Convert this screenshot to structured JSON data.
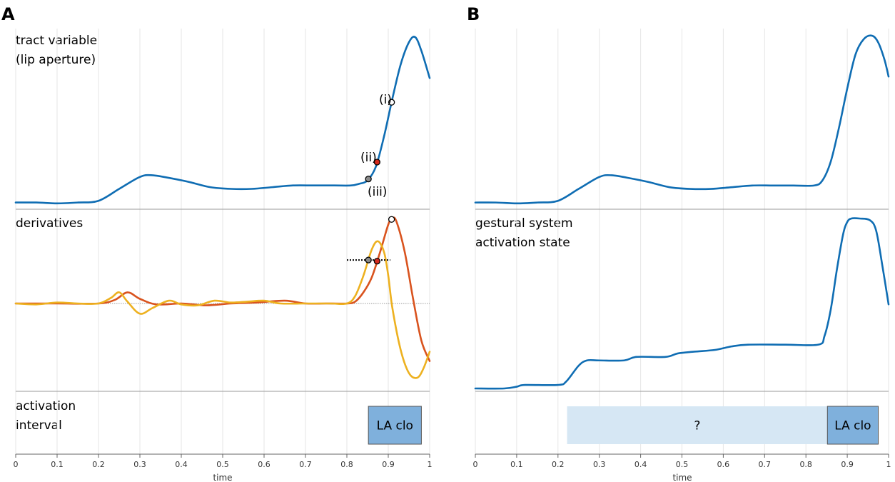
{
  "panels": {
    "A": {
      "letter": "A",
      "tract_label": [
        "tract variable",
        "(lip aperture)"
      ],
      "deriv_label": "derivatives",
      "interval_label": [
        "activation",
        "interval"
      ],
      "point_labels": [
        "(i)",
        "(ii)",
        "(iii)"
      ],
      "box_label": "LA clo"
    },
    "B": {
      "letter": "B",
      "state_label": [
        "gestural system",
        "activation state"
      ],
      "unknown_label": "?",
      "box_label": "LA clo"
    }
  },
  "colors": {
    "tract": "#0f6db3",
    "deriv1": "#d9531e",
    "deriv2": "#edb120",
    "box": "#7fb0dc",
    "box_light": "#d6e7f4",
    "grid": "#e6e6e6"
  },
  "chart_data": [
    {
      "type": "line",
      "panel": "A-top",
      "series": [
        {
          "color": "#0f6db3",
          "x": [
            0,
            0.05,
            0.1,
            0.15,
            0.2,
            0.25,
            0.3,
            0.33,
            0.38,
            0.42,
            0.47,
            0.52,
            0.57,
            0.62,
            0.67,
            0.72,
            0.77,
            0.81,
            0.83,
            0.85,
            0.87,
            0.89,
            0.91,
            0.93,
            0.95,
            0.965,
            0.98,
            1.0
          ],
          "y": [
            0.01,
            0.01,
            0.005,
            0.01,
            0.02,
            0.09,
            0.16,
            0.17,
            0.15,
            0.13,
            0.1,
            0.09,
            0.09,
            0.1,
            0.11,
            0.11,
            0.11,
            0.11,
            0.12,
            0.14,
            0.22,
            0.4,
            0.62,
            0.82,
            0.95,
            0.98,
            0.9,
            0.74
          ]
        }
      ],
      "points": [
        {
          "label": "(i)",
          "x": 0.908,
          "fill": "#ffffff"
        },
        {
          "label": "(ii)",
          "x": 0.873,
          "fill": "#d42a1e"
        },
        {
          "label": "(iii)",
          "x": 0.852,
          "fill": "#8a8a8a"
        }
      ],
      "xlim": [
        0,
        1
      ]
    },
    {
      "type": "line",
      "panel": "A-middle",
      "series": [
        {
          "color": "#d9531e",
          "x": [
            0,
            0.1,
            0.2,
            0.24,
            0.27,
            0.3,
            0.34,
            0.4,
            0.46,
            0.52,
            0.58,
            0.65,
            0.7,
            0.75,
            0.8,
            0.82,
            0.84,
            0.86,
            0.88,
            0.9,
            0.91,
            0.92,
            0.94,
            0.96,
            0.98,
            1.0
          ],
          "y": [
            0,
            0,
            0,
            0.04,
            0.12,
            0.05,
            -0.01,
            0,
            -0.02,
            0,
            0.01,
            0.03,
            0.0,
            0,
            0,
            0.02,
            0.12,
            0.28,
            0.55,
            0.85,
            0.92,
            0.88,
            0.55,
            0.05,
            -0.4,
            -0.62
          ]
        },
        {
          "color": "#edb120",
          "x": [
            0,
            0.05,
            0.1,
            0.15,
            0.2,
            0.23,
            0.25,
            0.27,
            0.3,
            0.33,
            0.37,
            0.4,
            0.44,
            0.48,
            0.52,
            0.56,
            0.6,
            0.64,
            0.7,
            0.76,
            0.8,
            0.82,
            0.84,
            0.86,
            0.875,
            0.89,
            0.9,
            0.91,
            0.93,
            0.95,
            0.97,
            0.985,
            1.0
          ],
          "y": [
            0,
            -0.01,
            0.01,
            0,
            0,
            0.06,
            0.12,
            0.02,
            -0.11,
            -0.05,
            0.03,
            -0.01,
            -0.02,
            0.03,
            0.01,
            0.02,
            0.03,
            0.0,
            0,
            0,
            0,
            0.08,
            0.3,
            0.58,
            0.67,
            0.55,
            0.3,
            -0.05,
            -0.5,
            -0.75,
            -0.8,
            -0.7,
            -0.52
          ]
        }
      ],
      "points": [
        {
          "series": 0,
          "x": 0.908,
          "fill": "#ffffff"
        },
        {
          "series": 0,
          "x": 0.873,
          "fill": "#d42a1e"
        },
        {
          "series": 1,
          "x": 0.852,
          "fill": "#8a8a8a"
        }
      ],
      "xlim": [
        0,
        1
      ]
    },
    {
      "type": "bar",
      "panel": "A-bottom",
      "intervals": [
        {
          "label": "LA clo",
          "start": 0.852,
          "end": 0.98
        }
      ],
      "xlabel": "time",
      "xticks": [
        0,
        0.1,
        0.2,
        0.3,
        0.4,
        0.5,
        0.6,
        0.7,
        0.8,
        0.9,
        1
      ],
      "xlim": [
        0,
        1
      ]
    },
    {
      "type": "line",
      "panel": "B-top",
      "series": [
        {
          "color": "#0f6db3",
          "x": [
            0,
            0.05,
            0.1,
            0.15,
            0.2,
            0.25,
            0.3,
            0.33,
            0.38,
            0.42,
            0.47,
            0.52,
            0.57,
            0.62,
            0.67,
            0.72,
            0.77,
            0.82,
            0.84,
            0.86,
            0.88,
            0.9,
            0.92,
            0.94,
            0.96,
            0.975,
            0.99,
            1.0
          ],
          "y": [
            0.01,
            0.01,
            0.005,
            0.01,
            0.02,
            0.09,
            0.16,
            0.17,
            0.15,
            0.13,
            0.1,
            0.09,
            0.09,
            0.1,
            0.11,
            0.11,
            0.11,
            0.11,
            0.14,
            0.25,
            0.45,
            0.68,
            0.88,
            0.97,
            0.99,
            0.95,
            0.85,
            0.75
          ]
        }
      ],
      "xlim": [
        0,
        1
      ]
    },
    {
      "type": "line",
      "panel": "B-middle",
      "series": [
        {
          "color": "#0f6db3",
          "x": [
            0,
            0.07,
            0.1,
            0.12,
            0.2,
            0.22,
            0.25,
            0.27,
            0.3,
            0.36,
            0.39,
            0.46,
            0.49,
            0.53,
            0.58,
            0.62,
            0.66,
            0.75,
            0.83,
            0.845,
            0.86,
            0.875,
            0.89,
            0.9,
            0.91,
            0.93,
            0.955,
            0.97,
            0.985,
            1.0
          ],
          "y": [
            0,
            0,
            0.01,
            0.02,
            0.02,
            0.04,
            0.13,
            0.16,
            0.16,
            0.16,
            0.18,
            0.18,
            0.2,
            0.21,
            0.22,
            0.24,
            0.25,
            0.25,
            0.25,
            0.3,
            0.45,
            0.68,
            0.88,
            0.95,
            0.97,
            0.97,
            0.96,
            0.9,
            0.7,
            0.48
          ]
        }
      ],
      "xlim": [
        0,
        1
      ]
    },
    {
      "type": "bar",
      "panel": "B-bottom",
      "intervals": [
        {
          "label": "?",
          "start": 0.222,
          "end": 0.852,
          "light": true
        },
        {
          "label": "LA clo",
          "start": 0.852,
          "end": 0.975
        }
      ],
      "xlabel": "time",
      "xticks": [
        0,
        0.1,
        0.2,
        0.3,
        0.4,
        0.5,
        0.6,
        0.7,
        0.8,
        0.9,
        1
      ],
      "xlim": [
        0,
        1
      ]
    }
  ]
}
